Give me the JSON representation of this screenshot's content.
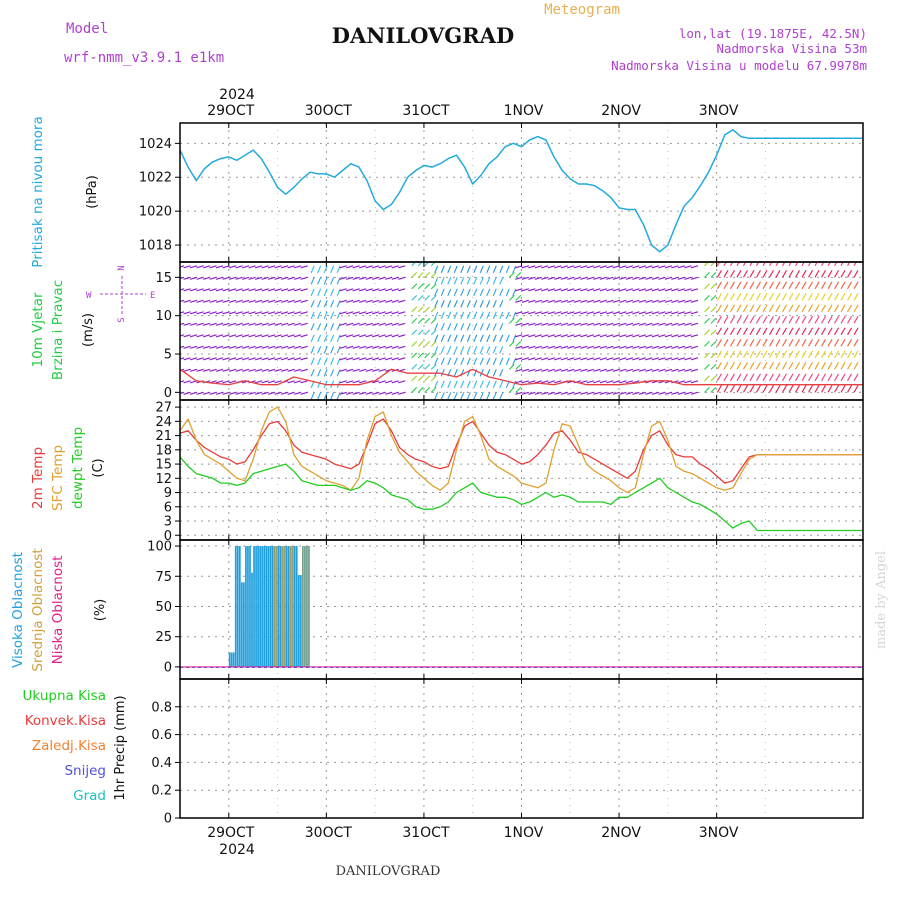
{
  "header": {
    "model_label": "Model",
    "model_name": "wrf-nmm_v3.9.1 e1km",
    "title": "DANILOVGRAD",
    "meteogram_label": "Meteogram",
    "lonlat": "lon,lat (19.1875E, 42.5N)",
    "elevation": "Nadmorska Visina 53m",
    "model_elevation": "Nadmorska Visina u modelu 67.9978m"
  },
  "footer": {
    "location": "DANILOVGRAD",
    "credit": "made by Angel"
  },
  "colors": {
    "pressure": "#22aadd",
    "temp2m": "#e83c3c",
    "sfc_temp": "#e0a030",
    "dewpoint": "#22cc22",
    "high_cloud": "#22a0dd",
    "mid_cloud": "#d0a040",
    "low_cloud": "#e0208a",
    "wind_label": "#22cc44",
    "wind_dir_label": "#b040d0",
    "header_purple": "#b040d0",
    "header_orange": "#e8b050",
    "total_precip": "#22cc22",
    "conv_precip": "#e83c3c",
    "frozen_precip": "#f08030",
    "snow": "#5050e0",
    "graupel": "#20c0c0",
    "wind_speed_line": "#e84040"
  },
  "time_axis": {
    "year": "2024",
    "day_labels": [
      "29OCT",
      "30OCT",
      "31OCT",
      "1NOV",
      "2NOV",
      "3NOV"
    ]
  },
  "panels": {
    "pressure": {
      "ylabel": "Pritisak na nivou mora",
      "units": "(hPa)",
      "yticks": [
        1018,
        1020,
        1022,
        1024
      ]
    },
    "wind": {
      "ylabel1": "10m Vjetar",
      "ylabel2": "Brzina i Pravac",
      "units": "(m/s)",
      "yticks": [
        0,
        5,
        10,
        15
      ],
      "compass_n": "N",
      "compass_s": "S",
      "compass_w": "W",
      "compass_e": "E"
    },
    "temperature": {
      "ylabel_2m": "2m Temp",
      "ylabel_sfc": "SFC Temp",
      "ylabel_dew": "dewpt Temp",
      "units": "(C)",
      "yticks": [
        0,
        3,
        6,
        9,
        12,
        15,
        18,
        21,
        24,
        27
      ]
    },
    "clouds": {
      "ylabel_high": "Visoka Oblacnost",
      "ylabel_mid": "Srednja Oblacnost",
      "ylabel_low": "Niska Oblacnost",
      "units": "(%)",
      "yticks": [
        0,
        25,
        50,
        75,
        100
      ]
    },
    "precip": {
      "legend": [
        "Ukupna Kisa",
        "Konvek.Kisa",
        "Zaledj.Kisa",
        "Snijeg",
        "Grad"
      ],
      "ylabel": "1hr Precip (mm)",
      "yticks": [
        "0",
        "0.2",
        "0.4",
        "0.6",
        "0.8"
      ]
    }
  },
  "chart_data": [
    {
      "type": "line",
      "panel": "pressure",
      "ylim": [
        1017,
        1025.2
      ],
      "x": [
        -12,
        -10,
        -8,
        -6,
        -4,
        -2,
        0,
        2,
        4,
        6,
        8,
        10,
        12,
        14,
        16,
        18,
        20,
        22,
        24,
        26,
        28,
        30,
        32,
        34,
        36,
        38,
        40,
        42,
        44,
        46,
        48,
        50,
        52,
        54,
        56,
        58,
        60,
        62,
        64,
        66,
        68,
        70,
        72,
        74,
        76,
        78,
        80,
        82,
        84,
        86,
        88,
        90,
        92,
        94,
        96,
        98,
        100,
        102,
        104,
        106,
        108,
        110,
        112,
        114,
        116,
        118,
        120,
        122,
        124,
        126,
        128,
        130,
        132,
        134,
        136,
        138,
        140,
        142,
        144,
        146,
        148,
        150,
        152,
        156
      ],
      "series": [
        {
          "values": [
            1023.6,
            1022.6,
            1021.8,
            1022.5,
            1022.9,
            1023.1,
            1023.2,
            1023.0,
            1023.3,
            1023.6,
            1023.1,
            1022.3,
            1021.4,
            1021.0,
            1021.4,
            1021.9,
            1022.3,
            1022.2,
            1022.2,
            1022.0,
            1022.4,
            1022.8,
            1022.6,
            1021.8,
            1020.6,
            1020.1,
            1020.4,
            1021.1,
            1022.0,
            1022.4,
            1022.7,
            1022.6,
            1022.8,
            1023.1,
            1023.3,
            1022.6,
            1021.6,
            1022.1,
            1022.8,
            1023.2,
            1023.8,
            1024.0,
            1023.8,
            1024.2,
            1024.4,
            1024.2,
            1023.2,
            1022.4,
            1021.9,
            1021.6,
            1021.6,
            1021.5,
            1021.2,
            1020.8,
            1020.2,
            1020.1,
            1020.1,
            1019.2,
            1018.0,
            1017.6,
            1018.0,
            1019.2,
            1020.3,
            1020.8,
            1021.5,
            1022.3,
            1023.3,
            1024.5,
            1024.8,
            1024.4,
            1024.3,
            1024.3,
            1024.3,
            1024.3,
            1024.3,
            1024.3,
            1024.3,
            1024.3,
            1024.3,
            1024.3,
            1024.3,
            1024.3,
            1024.3,
            1024.3
          ]
        }
      ]
    },
    {
      "type": "line",
      "panel": "wind",
      "ylim": [
        -1,
        17
      ],
      "x": [
        -12,
        -8,
        -4,
        0,
        4,
        8,
        12,
        16,
        20,
        24,
        28,
        32,
        36,
        40,
        44,
        48,
        52,
        56,
        60,
        64,
        68,
        72,
        76,
        80,
        84,
        88,
        92,
        96,
        100,
        104,
        108,
        112,
        116,
        120,
        124,
        128,
        132,
        136,
        140,
        144,
        148,
        156
      ],
      "series": [
        {
          "name": "speed",
          "values": [
            3,
            1.5,
            1.2,
            1,
            1.5,
            1,
            1,
            2,
            1.5,
            1,
            1,
            1,
            1.5,
            3,
            2.5,
            2.5,
            2.5,
            2,
            3,
            2,
            1.5,
            1,
            1.2,
            1,
            1.5,
            1,
            1,
            1,
            1.2,
            1.5,
            1.5,
            1,
            1,
            1,
            1,
            1,
            1,
            1,
            1,
            1,
            1,
            1
          ]
        }
      ]
    },
    {
      "type": "line",
      "panel": "temperature",
      "ylim": [
        -1,
        28.5
      ],
      "x": [
        -12,
        -10,
        -8,
        -6,
        -4,
        -2,
        0,
        2,
        4,
        6,
        8,
        10,
        12,
        14,
        16,
        18,
        20,
        22,
        24,
        26,
        28,
        30,
        32,
        34,
        36,
        38,
        40,
        42,
        44,
        46,
        48,
        50,
        52,
        54,
        56,
        58,
        60,
        62,
        64,
        66,
        68,
        70,
        72,
        74,
        76,
        78,
        80,
        82,
        84,
        86,
        88,
        90,
        92,
        94,
        96,
        98,
        100,
        102,
        104,
        106,
        108,
        110,
        112,
        114,
        116,
        118,
        120,
        122,
        124,
        126,
        128,
        130,
        132,
        134,
        136,
        138,
        140,
        142,
        144,
        146,
        148,
        150,
        152,
        156
      ],
      "series": [
        {
          "name": "2m Temp",
          "values": [
            21.5,
            22,
            20,
            18.5,
            17.5,
            16.5,
            16,
            15,
            15.5,
            18,
            21,
            23.5,
            24,
            22,
            19,
            17.5,
            17,
            16.5,
            16,
            15,
            14.5,
            14,
            15,
            19,
            23.5,
            24.5,
            22,
            18.5,
            17,
            16,
            15.5,
            14.5,
            14,
            14.5,
            19,
            23,
            24,
            21.5,
            19,
            17.5,
            17,
            16,
            15,
            15.5,
            17,
            19,
            21.5,
            22,
            20,
            17.5,
            17,
            16,
            15,
            14,
            13,
            12,
            13.5,
            18,
            21,
            22,
            19,
            17,
            16.5,
            16.5,
            15,
            14,
            12.5,
            11,
            11.5,
            14,
            16.5,
            17,
            17,
            17,
            17,
            17,
            17,
            17,
            17,
            17,
            17,
            17,
            17,
            17
          ]
        },
        {
          "name": "SFC Temp",
          "values": [
            22,
            24.5,
            20,
            17,
            16,
            15,
            13.5,
            12,
            11.5,
            16,
            22,
            26,
            27,
            24,
            17,
            14.5,
            13.5,
            12.5,
            11.5,
            11,
            10.5,
            9.5,
            12,
            20,
            25,
            26,
            21,
            17.5,
            15.5,
            13.5,
            12,
            10.5,
            9.5,
            11,
            18,
            24,
            25,
            21,
            16,
            14.5,
            13.5,
            12.5,
            11,
            10.5,
            10,
            11,
            18,
            23.5,
            23,
            19,
            15,
            13.5,
            12.5,
            11.5,
            10,
            9,
            10,
            17,
            23,
            24,
            20,
            14.5,
            13.5,
            13,
            12,
            11,
            10,
            9.5,
            10,
            13,
            16,
            17,
            17,
            17,
            17,
            17,
            17,
            17,
            17,
            17,
            17,
            17,
            17,
            17
          ]
        },
        {
          "name": "dewpt Temp",
          "values": [
            16.5,
            14.5,
            13,
            12.5,
            12,
            11,
            11,
            10.5,
            11,
            13,
            13.5,
            14,
            14.5,
            15,
            13.5,
            11.5,
            11,
            10.5,
            10.5,
            10.5,
            10,
            9.5,
            10,
            11.5,
            11,
            10,
            8.5,
            8,
            7.5,
            6,
            5.5,
            5.5,
            6,
            7,
            9,
            10,
            11,
            9,
            8.5,
            8,
            8,
            7.5,
            6.5,
            7,
            8,
            9,
            8,
            8.5,
            8,
            7,
            7,
            7,
            7,
            6.5,
            8,
            8,
            9,
            10,
            11,
            12,
            10,
            9,
            8,
            7,
            6.5,
            5.5,
            4.5,
            3,
            1.5,
            2.5,
            3,
            1,
            1,
            1,
            1,
            1,
            1,
            1,
            1,
            1,
            1,
            1,
            1,
            1
          ]
        }
      ]
    },
    {
      "type": "bar",
      "panel": "clouds",
      "ylim": [
        -10,
        105
      ],
      "x": [
        0,
        0.5,
        1,
        1.5,
        2,
        2.5,
        3,
        3.5,
        4,
        4.5,
        5,
        5.5,
        6,
        6.5,
        7,
        7.5,
        8,
        8.5,
        9,
        9.5,
        10,
        10.5,
        11,
        11.5,
        12,
        12.5,
        13,
        13.5,
        14,
        14.5,
        15,
        15.5,
        16,
        16.5,
        17,
        17.5,
        18,
        18.5,
        19,
        19.5
      ],
      "series": [
        {
          "name": "high",
          "values": [
            12,
            12,
            12,
            100,
            100,
            100,
            70,
            70,
            100,
            100,
            100,
            78,
            100,
            100,
            100,
            100,
            100,
            100,
            100,
            100,
            100,
            100,
            100,
            100,
            100,
            100,
            100,
            100,
            100,
            100,
            100,
            100,
            100,
            100,
            76,
            76,
            100,
            100,
            100,
            100
          ]
        },
        {
          "name": "mid",
          "values": [
            0,
            0,
            0,
            0,
            0,
            0,
            0,
            0,
            0,
            0,
            0,
            0,
            0,
            0,
            0,
            0,
            0,
            0,
            0,
            0,
            0,
            0,
            100,
            100,
            0,
            0,
            100,
            100,
            0,
            0,
            100,
            100,
            0,
            0,
            0,
            0,
            100,
            100,
            100,
            100
          ]
        },
        {
          "name": "low",
          "values": [
            0,
            0,
            0,
            0,
            0,
            0,
            0,
            0,
            0,
            0,
            0,
            0,
            0,
            0,
            0,
            0,
            0,
            0,
            0,
            0,
            0,
            0,
            0,
            0,
            0,
            0,
            0,
            0,
            0,
            0,
            0,
            0,
            0,
            0,
            0,
            0,
            0,
            0,
            0,
            0
          ]
        }
      ]
    },
    {
      "type": "line",
      "panel": "precip",
      "ylim": [
        0,
        1
      ],
      "x": [
        -12,
        156
      ],
      "series": [
        {
          "name": "Ukupna Kisa",
          "values": [
            0,
            0
          ]
        }
      ]
    }
  ]
}
